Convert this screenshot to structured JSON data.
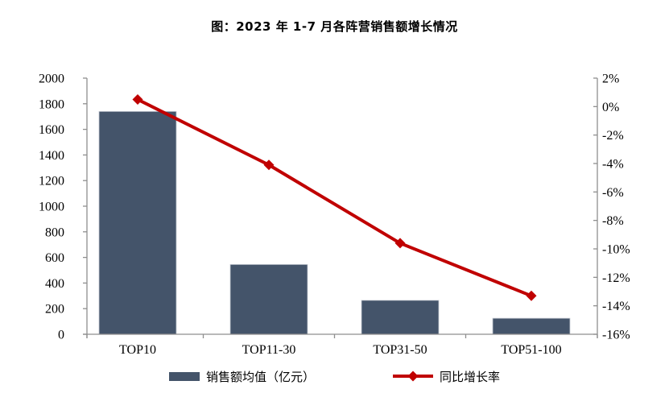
{
  "chart_data": {
    "type": "bar+line",
    "title": "图：2023 年 1-7 月各阵营销售额增长情况",
    "categories": [
      "TOP10",
      "TOP11-30",
      "TOP31-50",
      "TOP51-100"
    ],
    "series": [
      {
        "name": "销售额均值（亿元）",
        "type": "bar",
        "axis": "left",
        "values": [
          1740,
          545,
          265,
          125
        ],
        "color": "#44546A"
      },
      {
        "name": "同比增长率",
        "type": "line",
        "axis": "right",
        "values_pct": [
          0.5,
          -4.1,
          -9.6,
          -13.3
        ],
        "color": "#C00000",
        "marker": "diamond"
      }
    ],
    "left_axis": {
      "min": 0,
      "max": 2000,
      "step": 200,
      "ticks": [
        2000,
        1800,
        1600,
        1400,
        1200,
        1000,
        800,
        600,
        400,
        200,
        0
      ]
    },
    "right_axis": {
      "min": -16,
      "max": 2,
      "step": 2,
      "unit": "%",
      "ticks": [
        2,
        0,
        -2,
        -4,
        -6,
        -8,
        -10,
        -12,
        -14,
        -16
      ],
      "labels": [
        "2%",
        "0%",
        "-2%",
        "-4%",
        "-6%",
        "-8%",
        "-10%",
        "-12%",
        "-14%",
        "-16%"
      ]
    },
    "legend_position": "bottom",
    "grid": false
  },
  "colors": {
    "bar": "#44546A",
    "line": "#C00000",
    "axis": "#8F8F8F",
    "text": "#000000",
    "background": "#FFFFFF"
  }
}
